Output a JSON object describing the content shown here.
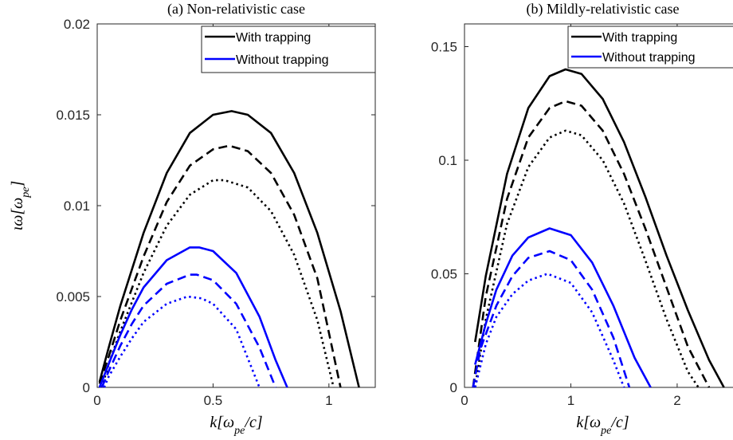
{
  "chart_data": [
    {
      "type": "line",
      "title": "(a) Non-relativistic case",
      "xlabel": "k[ω_pe/c]",
      "ylabel": "ιω[ω_pe]",
      "xlim": [
        0,
        1.2
      ],
      "ylim": [
        0,
        0.02
      ],
      "xticks": [
        0,
        0.5,
        1
      ],
      "yticks": [
        0,
        0.005,
        0.01,
        0.015,
        0.02
      ],
      "xtick_labels": [
        "0",
        "0.5",
        "1"
      ],
      "ytick_labels": [
        "0",
        "0.005",
        "0.01",
        "0.015",
        "0.02"
      ],
      "grid": false,
      "legend_position": "top-right",
      "legend": [
        "With trapping",
        "Without trapping"
      ],
      "series": [
        {
          "group": "With trapping",
          "color": "#000000",
          "dash": "solid",
          "x": [
            0.01,
            0.05,
            0.1,
            0.2,
            0.3,
            0.4,
            0.5,
            0.58,
            0.65,
            0.75,
            0.85,
            0.95,
            1.05,
            1.13
          ],
          "y": [
            0.0003,
            0.0022,
            0.0045,
            0.0085,
            0.0118,
            0.014,
            0.015,
            0.0152,
            0.015,
            0.014,
            0.0118,
            0.0085,
            0.0042,
            0.0
          ]
        },
        {
          "group": "With trapping",
          "color": "#000000",
          "dash": "dashed",
          "x": [
            0.01,
            0.05,
            0.1,
            0.2,
            0.3,
            0.4,
            0.5,
            0.57,
            0.65,
            0.75,
            0.85,
            0.95,
            1.05
          ],
          "y": [
            0.0002,
            0.0017,
            0.0037,
            0.0072,
            0.0102,
            0.0122,
            0.0131,
            0.0133,
            0.013,
            0.0118,
            0.0095,
            0.006,
            0.0
          ]
        },
        {
          "group": "With trapping",
          "color": "#000000",
          "dash": "dotted",
          "x": [
            0.02,
            0.05,
            0.1,
            0.2,
            0.3,
            0.4,
            0.5,
            0.55,
            0.65,
            0.75,
            0.85,
            0.95,
            1.02
          ],
          "y": [
            0.0,
            0.0013,
            0.0031,
            0.0063,
            0.0089,
            0.0106,
            0.0114,
            0.0114,
            0.011,
            0.0097,
            0.0073,
            0.0037,
            0.0
          ]
        },
        {
          "group": "Without trapping",
          "color": "#0000ff",
          "dash": "solid",
          "x": [
            0.01,
            0.05,
            0.1,
            0.15,
            0.2,
            0.3,
            0.4,
            0.44,
            0.5,
            0.6,
            0.7,
            0.77,
            0.82
          ],
          "y": [
            0.0,
            0.0013,
            0.0029,
            0.0043,
            0.0055,
            0.007,
            0.0077,
            0.0077,
            0.0075,
            0.0063,
            0.0039,
            0.0015,
            0.0
          ]
        },
        {
          "group": "Without trapping",
          "color": "#0000ff",
          "dash": "dashed",
          "x": [
            0.02,
            0.05,
            0.1,
            0.15,
            0.2,
            0.3,
            0.4,
            0.43,
            0.5,
            0.6,
            0.7,
            0.77
          ],
          "y": [
            0.0,
            0.0009,
            0.0023,
            0.0035,
            0.0045,
            0.0057,
            0.0062,
            0.0062,
            0.0059,
            0.0046,
            0.0022,
            0.0
          ]
        },
        {
          "group": "Without trapping",
          "color": "#0000ff",
          "dash": "dotted",
          "x": [
            0.03,
            0.05,
            0.1,
            0.15,
            0.2,
            0.3,
            0.39,
            0.45,
            0.5,
            0.6,
            0.7
          ],
          "y": [
            0.0,
            0.0006,
            0.0017,
            0.0027,
            0.0036,
            0.0046,
            0.005,
            0.0049,
            0.0046,
            0.0032,
            0.0
          ]
        }
      ]
    },
    {
      "type": "line",
      "title": "(b) Mildly-relativistic case",
      "xlabel": "k[ω_pe/c]",
      "ylabel": "",
      "xlim": [
        0,
        2.6
      ],
      "ylim": [
        0,
        0.16
      ],
      "xticks": [
        0,
        1,
        2
      ],
      "yticks": [
        0,
        0.05,
        0.1,
        0.15
      ],
      "xtick_labels": [
        "0",
        "1",
        "2"
      ],
      "ytick_labels": [
        "0",
        "0.05",
        "0.1",
        "0.15"
      ],
      "grid": false,
      "legend_position": "top-right",
      "legend": [
        "With trapping",
        "Without trapping"
      ],
      "series": [
        {
          "group": "With trapping",
          "color": "#000000",
          "dash": "solid",
          "x": [
            0.1,
            0.2,
            0.4,
            0.6,
            0.8,
            0.95,
            1.1,
            1.3,
            1.5,
            1.7,
            1.9,
            2.1,
            2.3,
            2.44
          ],
          "y": [
            0.02,
            0.049,
            0.094,
            0.123,
            0.137,
            0.14,
            0.138,
            0.127,
            0.108,
            0.084,
            0.058,
            0.034,
            0.012,
            0.0
          ]
        },
        {
          "group": "With trapping",
          "color": "#000000",
          "dash": "dashed",
          "x": [
            0.08,
            0.2,
            0.4,
            0.6,
            0.8,
            0.95,
            1.1,
            1.3,
            1.5,
            1.7,
            1.9,
            2.1,
            2.3
          ],
          "y": [
            0.0,
            0.04,
            0.083,
            0.11,
            0.123,
            0.126,
            0.124,
            0.113,
            0.094,
            0.07,
            0.044,
            0.018,
            0.0
          ]
        },
        {
          "group": "With trapping",
          "color": "#000000",
          "dash": "dotted",
          "x": [
            0.1,
            0.2,
            0.4,
            0.6,
            0.8,
            0.95,
            1.1,
            1.3,
            1.5,
            1.7,
            1.9,
            2.1,
            2.2
          ],
          "y": [
            0.0,
            0.03,
            0.072,
            0.097,
            0.11,
            0.113,
            0.111,
            0.1,
            0.081,
            0.056,
            0.03,
            0.007,
            0.0
          ]
        },
        {
          "group": "Without trapping",
          "color": "#0000ff",
          "dash": "solid",
          "x": [
            0.1,
            0.2,
            0.3,
            0.45,
            0.6,
            0.8,
            1.0,
            1.2,
            1.4,
            1.6,
            1.75
          ],
          "y": [
            0.01,
            0.028,
            0.043,
            0.058,
            0.066,
            0.07,
            0.067,
            0.055,
            0.036,
            0.013,
            0.0
          ]
        },
        {
          "group": "Without trapping",
          "color": "#0000ff",
          "dash": "dashed",
          "x": [
            0.08,
            0.15,
            0.3,
            0.45,
            0.6,
            0.8,
            1.0,
            1.2,
            1.4,
            1.55
          ],
          "y": [
            0.0,
            0.017,
            0.036,
            0.049,
            0.057,
            0.06,
            0.056,
            0.043,
            0.022,
            0.0
          ]
        },
        {
          "group": "Without trapping",
          "color": "#0000ff",
          "dash": "dotted",
          "x": [
            0.1,
            0.2,
            0.3,
            0.45,
            0.6,
            0.78,
            1.0,
            1.2,
            1.4,
            1.5
          ],
          "y": [
            0.0,
            0.019,
            0.031,
            0.041,
            0.047,
            0.05,
            0.046,
            0.033,
            0.012,
            0.0
          ]
        }
      ]
    }
  ]
}
